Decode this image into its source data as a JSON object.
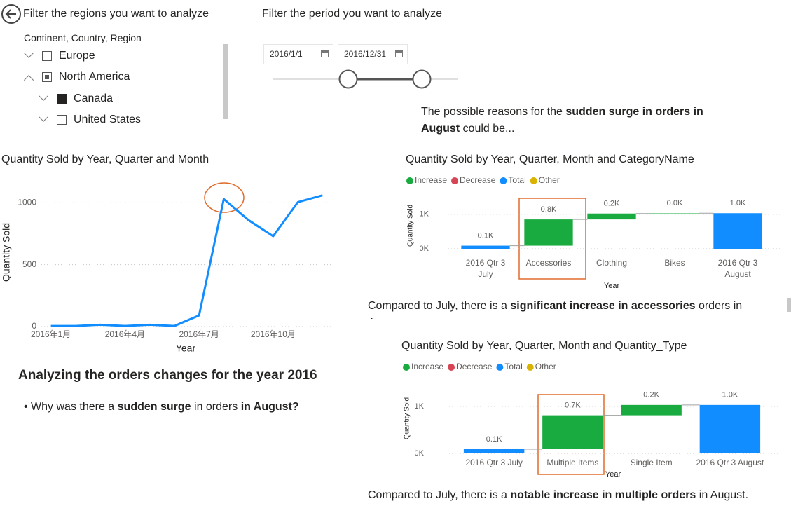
{
  "region_filter": {
    "title": "Filter the regions you want to analyze",
    "header": "Continent, Country, Region",
    "items": [
      "Europe",
      "North America",
      "Canada",
      "United States"
    ]
  },
  "period_filter": {
    "title": "Filter the period you want to analyze",
    "start": "2016/1/1",
    "end": "2016/12/31"
  },
  "reasons_text": [
    {
      "text": "The possible reasons for the "
    },
    {
      "text": "sudden surge in orders in August",
      "bold": true
    },
    {
      "text": " could be..."
    }
  ],
  "analysis": {
    "heading": "Analyzing the orders changes for the year 2016",
    "bullet": [
      {
        "text": "Why was there a "
      },
      {
        "text": "sudden surge",
        "bold": true
      },
      {
        "text": " in orders "
      },
      {
        "text": "in August?",
        "bold": true
      }
    ]
  },
  "insight_1": [
    {
      "text": "Compared to July, there is a "
    },
    {
      "text": "significant increase in accessories",
      "bold": true
    },
    {
      "text": " orders in August."
    }
  ],
  "insight_2": [
    {
      "text": "Compared to July, there is a "
    },
    {
      "text": "notable increase in multiple orders",
      "bold": true
    },
    {
      "text": " in August."
    }
  ],
  "chart_data": [
    {
      "type": "line",
      "title": "Quantity Sold by Year, Quarter and Month",
      "x_label": "Year",
      "y_label": "Quantity Sold",
      "categories": [
        "2016年1月",
        null,
        null,
        "2016年4月",
        null,
        null,
        "2016年7月",
        null,
        null,
        "2016年10月",
        null,
        null
      ],
      "values": [
        5,
        5,
        15,
        5,
        15,
        5,
        90,
        1030,
        860,
        730,
        1005,
        1060
      ],
      "color": "#118dff",
      "ylim": [
        0,
        1200
      ],
      "yticks": [
        0,
        500,
        1000
      ],
      "grid": true
    },
    {
      "type": "waterfall",
      "title": "Quantity Sold by Year, Quarter, Month and CategoryName",
      "x_label": "Year",
      "y_label": "Quantity Sold",
      "legend": [
        {
          "name": "Increase",
          "color": "#1aab40"
        },
        {
          "name": "Decrease",
          "color": "#d64554"
        },
        {
          "name": "Total",
          "color": "#118dff"
        },
        {
          "name": "Other",
          "color": "#d9b300"
        }
      ],
      "categories": [
        "2016 Qtr 3 July",
        "Accessories",
        "Clothing",
        "Bikes",
        "2016 Qtr 3 August"
      ],
      "bar_kinds": [
        "Total",
        "Increase",
        "Increase",
        "Increase",
        "Total"
      ],
      "values": [
        90,
        760,
        170,
        10,
        1030
      ],
      "value_labels": [
        "0.1K",
        "0.8K",
        "0.2K",
        "0.0K",
        "1.0K"
      ],
      "ylim": [
        0,
        1400
      ],
      "yticks": [
        {
          "value": 0,
          "label": "0K"
        },
        {
          "value": 1000,
          "label": "1K"
        }
      ],
      "grid": true
    },
    {
      "type": "waterfall",
      "title": "Quantity Sold by Year, Quarter, Month and Quantity_Type",
      "x_label": "Year",
      "y_label": "Quantity Sold",
      "legend": [
        {
          "name": "Increase",
          "color": "#1aab40"
        },
        {
          "name": "Decrease",
          "color": "#d64554"
        },
        {
          "name": "Total",
          "color": "#118dff"
        },
        {
          "name": "Other",
          "color": "#d9b300"
        }
      ],
      "categories": [
        "2016 Qtr 3 July",
        "Multiple Items",
        "Single Item",
        "2016 Qtr 3 August"
      ],
      "bar_kinds": [
        "Total",
        "Increase",
        "Increase",
        "Total"
      ],
      "values": [
        90,
        720,
        220,
        1030
      ],
      "value_labels": [
        "0.1K",
        "0.7K",
        "0.2K",
        "1.0K"
      ],
      "ylim": [
        0,
        1400
      ],
      "yticks": [
        {
          "value": 0,
          "label": "0K"
        },
        {
          "value": 1000,
          "label": "1K"
        }
      ],
      "grid": true
    }
  ]
}
